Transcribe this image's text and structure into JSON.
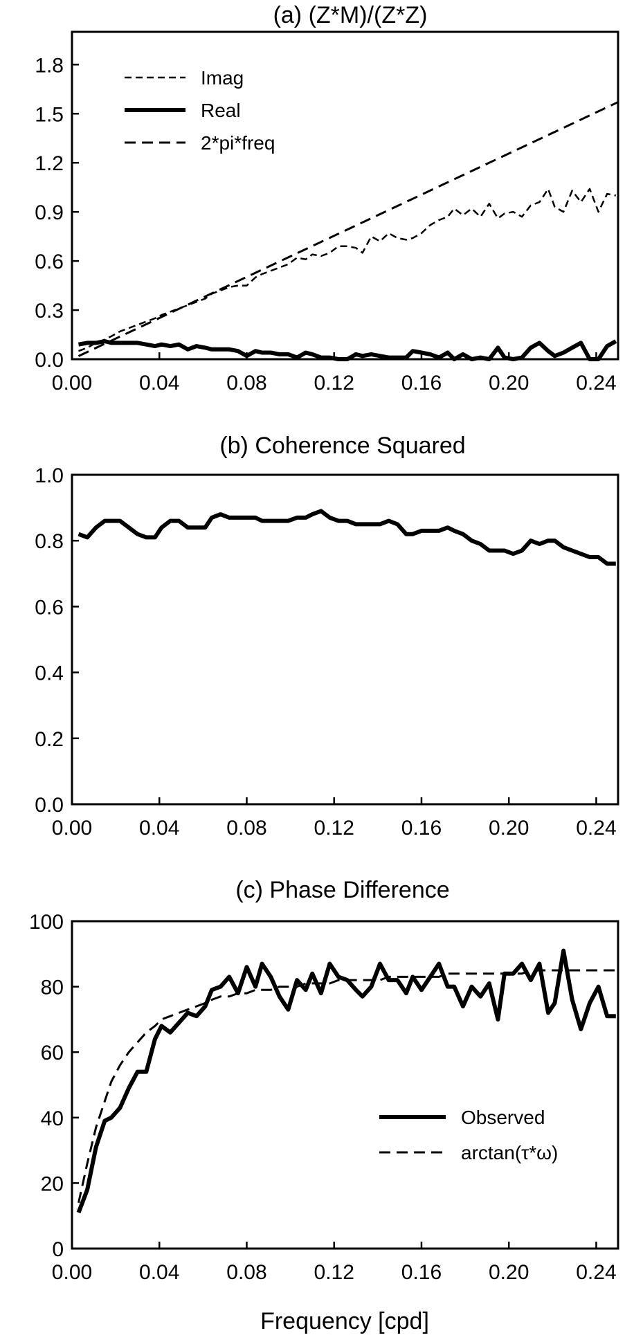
{
  "chart_data": [
    {
      "type": "line",
      "title": "(a) (Z*M)/(Z*Z)",
      "xlabel": "",
      "ylabel": "",
      "xlim": [
        0.0,
        0.25
      ],
      "ylim": [
        0.0,
        2.0
      ],
      "xticks": [
        "0.00",
        "0.04",
        "0.08",
        "0.12",
        "0.16",
        "0.20",
        "0.24"
      ],
      "yticks": [
        "0.0",
        "0.3",
        "0.6",
        "0.9",
        "1.2",
        "1.5",
        "1.8"
      ],
      "legend_position": "top-left",
      "series": [
        {
          "name": "Imag",
          "style": "dashed-thin",
          "x": [
            0.003,
            0.007,
            0.011,
            0.015,
            0.018,
            0.022,
            0.026,
            0.03,
            0.034,
            0.038,
            0.041,
            0.045,
            0.049,
            0.053,
            0.057,
            0.061,
            0.064,
            0.068,
            0.072,
            0.076,
            0.08,
            0.084,
            0.087,
            0.091,
            0.095,
            0.099,
            0.103,
            0.107,
            0.11,
            0.114,
            0.118,
            0.122,
            0.126,
            0.13,
            0.133,
            0.137,
            0.141,
            0.145,
            0.149,
            0.153,
            0.156,
            0.16,
            0.164,
            0.168,
            0.172,
            0.175,
            0.179,
            0.183,
            0.187,
            0.191,
            0.195,
            0.198,
            0.202,
            0.206,
            0.21,
            0.214,
            0.218,
            0.221,
            0.225,
            0.229,
            0.233,
            0.237,
            0.241,
            0.245,
            0.249
          ],
          "y": [
            0.05,
            0.07,
            0.1,
            0.12,
            0.14,
            0.17,
            0.19,
            0.21,
            0.23,
            0.25,
            0.27,
            0.29,
            0.31,
            0.33,
            0.35,
            0.37,
            0.4,
            0.42,
            0.44,
            0.45,
            0.45,
            0.5,
            0.52,
            0.54,
            0.56,
            0.58,
            0.62,
            0.61,
            0.64,
            0.63,
            0.65,
            0.69,
            0.69,
            0.68,
            0.65,
            0.75,
            0.72,
            0.77,
            0.74,
            0.73,
            0.74,
            0.77,
            0.82,
            0.85,
            0.87,
            0.92,
            0.88,
            0.92,
            0.87,
            0.95,
            0.86,
            0.89,
            0.9,
            0.87,
            0.94,
            0.96,
            1.04,
            0.93,
            0.9,
            1.03,
            0.96,
            1.04,
            0.9,
            1.01,
            1.0
          ]
        },
        {
          "name": "Real",
          "style": "solid-thick",
          "x": [
            0.003,
            0.007,
            0.011,
            0.015,
            0.018,
            0.022,
            0.026,
            0.03,
            0.034,
            0.038,
            0.041,
            0.045,
            0.049,
            0.053,
            0.057,
            0.061,
            0.064,
            0.068,
            0.072,
            0.076,
            0.08,
            0.084,
            0.087,
            0.091,
            0.095,
            0.099,
            0.103,
            0.107,
            0.11,
            0.114,
            0.118,
            0.122,
            0.126,
            0.13,
            0.133,
            0.137,
            0.141,
            0.145,
            0.149,
            0.153,
            0.156,
            0.16,
            0.164,
            0.168,
            0.172,
            0.175,
            0.179,
            0.183,
            0.187,
            0.191,
            0.195,
            0.198,
            0.202,
            0.206,
            0.21,
            0.214,
            0.218,
            0.221,
            0.225,
            0.229,
            0.233,
            0.237,
            0.241,
            0.245,
            0.249
          ],
          "y": [
            0.09,
            0.1,
            0.1,
            0.11,
            0.1,
            0.1,
            0.1,
            0.1,
            0.09,
            0.08,
            0.09,
            0.08,
            0.09,
            0.06,
            0.08,
            0.07,
            0.06,
            0.06,
            0.06,
            0.05,
            0.02,
            0.05,
            0.04,
            0.04,
            0.03,
            0.03,
            0.01,
            0.04,
            0.03,
            0.01,
            0.01,
            0.0,
            0.0,
            0.03,
            0.02,
            0.03,
            0.02,
            0.01,
            0.01,
            0.01,
            0.05,
            0.04,
            0.03,
            0.01,
            0.04,
            0.0,
            0.03,
            0.0,
            0.01,
            0.0,
            0.07,
            0.01,
            0.0,
            0.01,
            0.07,
            0.1,
            0.05,
            0.02,
            0.04,
            0.07,
            0.1,
            0.0,
            0.0,
            0.08,
            0.11
          ]
        },
        {
          "name": "2*pi*freq",
          "style": "dashed-medium",
          "x": [
            0.003,
            0.25
          ],
          "y": [
            0.019,
            1.571
          ]
        }
      ]
    },
    {
      "type": "line",
      "title": "(b) Coherence Squared",
      "xlabel": "",
      "ylabel": "",
      "xlim": [
        0.0,
        0.25
      ],
      "ylim": [
        0.0,
        1.0
      ],
      "xticks": [
        "0.00",
        "0.04",
        "0.08",
        "0.12",
        "0.16",
        "0.20",
        "0.24"
      ],
      "yticks": [
        "0.0",
        "0.2",
        "0.4",
        "0.6",
        "0.8",
        "1.0"
      ],
      "series": [
        {
          "name": "",
          "style": "solid-thick",
          "x": [
            0.003,
            0.007,
            0.011,
            0.015,
            0.018,
            0.022,
            0.026,
            0.03,
            0.034,
            0.038,
            0.041,
            0.045,
            0.049,
            0.053,
            0.057,
            0.061,
            0.064,
            0.068,
            0.072,
            0.076,
            0.08,
            0.084,
            0.087,
            0.091,
            0.095,
            0.099,
            0.103,
            0.107,
            0.11,
            0.114,
            0.118,
            0.122,
            0.126,
            0.13,
            0.133,
            0.137,
            0.141,
            0.145,
            0.149,
            0.153,
            0.156,
            0.16,
            0.164,
            0.168,
            0.172,
            0.175,
            0.179,
            0.183,
            0.187,
            0.191,
            0.195,
            0.198,
            0.202,
            0.206,
            0.21,
            0.214,
            0.218,
            0.221,
            0.225,
            0.229,
            0.233,
            0.237,
            0.241,
            0.245,
            0.249
          ],
          "y": [
            0.82,
            0.81,
            0.84,
            0.86,
            0.86,
            0.86,
            0.84,
            0.82,
            0.81,
            0.81,
            0.84,
            0.86,
            0.86,
            0.84,
            0.84,
            0.84,
            0.87,
            0.88,
            0.87,
            0.87,
            0.87,
            0.87,
            0.86,
            0.86,
            0.86,
            0.86,
            0.87,
            0.87,
            0.88,
            0.89,
            0.87,
            0.86,
            0.86,
            0.85,
            0.85,
            0.85,
            0.85,
            0.86,
            0.85,
            0.82,
            0.82,
            0.83,
            0.83,
            0.83,
            0.84,
            0.83,
            0.82,
            0.8,
            0.79,
            0.77,
            0.77,
            0.77,
            0.76,
            0.77,
            0.8,
            0.79,
            0.8,
            0.8,
            0.78,
            0.77,
            0.76,
            0.75,
            0.75,
            0.73,
            0.73
          ]
        }
      ]
    },
    {
      "type": "line",
      "title": "(c) Phase Difference",
      "xlabel": "Frequency [cpd]",
      "ylabel": "",
      "xlim": [
        0.0,
        0.25
      ],
      "ylim": [
        0,
        100
      ],
      "xticks": [
        "0.00",
        "0.04",
        "0.08",
        "0.12",
        "0.16",
        "0.20",
        "0.24"
      ],
      "yticks": [
        "0",
        "20",
        "40",
        "60",
        "80",
        "100"
      ],
      "legend_position": "bottom-right",
      "series": [
        {
          "name": "Observed",
          "style": "solid-thick",
          "x": [
            0.003,
            0.007,
            0.011,
            0.015,
            0.018,
            0.022,
            0.026,
            0.03,
            0.034,
            0.038,
            0.041,
            0.045,
            0.049,
            0.053,
            0.057,
            0.061,
            0.064,
            0.068,
            0.072,
            0.076,
            0.08,
            0.084,
            0.087,
            0.091,
            0.095,
            0.099,
            0.103,
            0.107,
            0.11,
            0.114,
            0.118,
            0.122,
            0.126,
            0.13,
            0.133,
            0.137,
            0.141,
            0.145,
            0.149,
            0.153,
            0.156,
            0.16,
            0.164,
            0.168,
            0.172,
            0.175,
            0.179,
            0.183,
            0.187,
            0.191,
            0.195,
            0.198,
            0.202,
            0.206,
            0.21,
            0.214,
            0.218,
            0.221,
            0.225,
            0.229,
            0.233,
            0.237,
            0.241,
            0.245,
            0.249
          ],
          "y": [
            11,
            18,
            31,
            39,
            40,
            43,
            49,
            54,
            54,
            64,
            68,
            66,
            69,
            72,
            71,
            74,
            79,
            80,
            83,
            78,
            86,
            80,
            87,
            83,
            77,
            73,
            82,
            79,
            84,
            78,
            87,
            83,
            82,
            79,
            77,
            80,
            87,
            82,
            82,
            78,
            83,
            79,
            83,
            87,
            80,
            80,
            74,
            80,
            77,
            81,
            70,
            84,
            84,
            87,
            82,
            87,
            72,
            75,
            91,
            76,
            67,
            75,
            80,
            71,
            71
          ]
        },
        {
          "name": "arctan(τ*ω)",
          "style": "dashed-medium",
          "x": [
            0.003,
            0.007,
            0.011,
            0.015,
            0.018,
            0.022,
            0.026,
            0.03,
            0.034,
            0.038,
            0.041,
            0.045,
            0.049,
            0.053,
            0.057,
            0.061,
            0.064,
            0.068,
            0.072,
            0.076,
            0.08,
            0.084,
            0.087,
            0.091,
            0.095,
            0.099,
            0.103,
            0.107,
            0.11,
            0.114,
            0.118,
            0.122,
            0.126,
            0.13,
            0.133,
            0.137,
            0.141,
            0.145,
            0.149,
            0.153,
            0.156,
            0.16,
            0.164,
            0.168,
            0.172,
            0.175,
            0.179,
            0.183,
            0.187,
            0.191,
            0.195,
            0.198,
            0.202,
            0.206,
            0.21,
            0.214,
            0.218,
            0.221,
            0.225,
            0.229,
            0.233,
            0.237,
            0.241,
            0.245,
            0.249
          ],
          "y": [
            14,
            26,
            37,
            45,
            51,
            56,
            60,
            63,
            66,
            68,
            70,
            71,
            72,
            73,
            74,
            75,
            76,
            77,
            77,
            78,
            78,
            79,
            79,
            79,
            80,
            80,
            80,
            81,
            81,
            81,
            81,
            82,
            82,
            82,
            82,
            82,
            82,
            83,
            83,
            83,
            83,
            83,
            83,
            83,
            84,
            84,
            84,
            84,
            84,
            84,
            84,
            84,
            84,
            84,
            85,
            85,
            85,
            85,
            85,
            85,
            85,
            85,
            85,
            85,
            85
          ]
        }
      ]
    }
  ]
}
